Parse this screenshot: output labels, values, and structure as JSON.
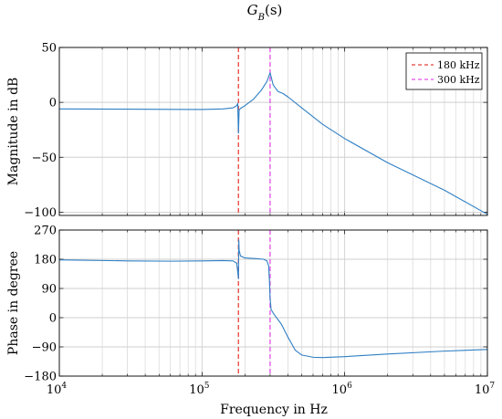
{
  "chart_data": {
    "type": "line",
    "title": "G_B(s)",
    "x_axis": {
      "label": "Frequency in Hz",
      "scale": "log",
      "range": [
        10000,
        10000000
      ],
      "tick_values": [
        10000,
        100000,
        1000000,
        10000000
      ],
      "tick_labels": [
        {
          "base": "10",
          "exp": "4"
        },
        {
          "base": "10",
          "exp": "5"
        },
        {
          "base": "10",
          "exp": "6"
        },
        {
          "base": "10",
          "exp": "7"
        }
      ],
      "grid": true
    },
    "markers": [
      {
        "name": "180 kHz",
        "x": 180000,
        "color": "#e8413b",
        "style": "dashed"
      },
      {
        "name": "300 kHz",
        "x": 300000,
        "color": "#e24fe6",
        "style": "dashed"
      }
    ],
    "legend_position": "top-right",
    "line_color": "#2f7fc4",
    "panels": [
      {
        "name": "magnitude",
        "ylabel": "Magnitude in dB",
        "ylim": [
          -103,
          50
        ],
        "yticks": [
          50,
          0,
          -50,
          -100
        ],
        "grid": true,
        "series": {
          "x": [
            10000,
            30000,
            60000,
            100000,
            140000,
            165000,
            175000,
            178000,
            180000,
            182000,
            186000,
            200000,
            230000,
            260000,
            285000,
            300000,
            315000,
            340000,
            370000,
            400000,
            500000,
            700000,
            1000000,
            2000000,
            5000000,
            10000000
          ],
          "y": [
            -6,
            -6.2,
            -6.4,
            -6.5,
            -6,
            -5,
            -3,
            -1,
            -28,
            -7,
            -5.5,
            -3,
            3,
            11,
            19,
            27,
            16,
            10,
            8,
            5,
            -5,
            -20,
            -33,
            -55,
            -80,
            -102
          ]
        }
      },
      {
        "name": "phase",
        "ylabel": "Phase in degree",
        "ylim": [
          -180,
          270
        ],
        "yticks": [
          270,
          180,
          90,
          0,
          -90,
          -180
        ],
        "grid": true,
        "series": {
          "x": [
            10000,
            30000,
            60000,
            100000,
            140000,
            165000,
            175000,
            178000,
            180000,
            181000,
            182000,
            186000,
            200000,
            240000,
            270000,
            285000,
            293000,
            297000,
            300000,
            305000,
            320000,
            360000,
            400000,
            450000,
            500000,
            600000,
            700000,
            1000000,
            2000000,
            5000000,
            10000000
          ],
          "y": [
            178,
            175,
            174,
            175,
            176,
            175,
            168,
            140,
            120,
            240,
            208,
            190,
            184,
            182,
            180,
            175,
            160,
            110,
            60,
            25,
            10,
            -20,
            -60,
            -100,
            -115,
            -122,
            -123,
            -120,
            -112,
            -103,
            -98
          ]
        }
      }
    ]
  }
}
